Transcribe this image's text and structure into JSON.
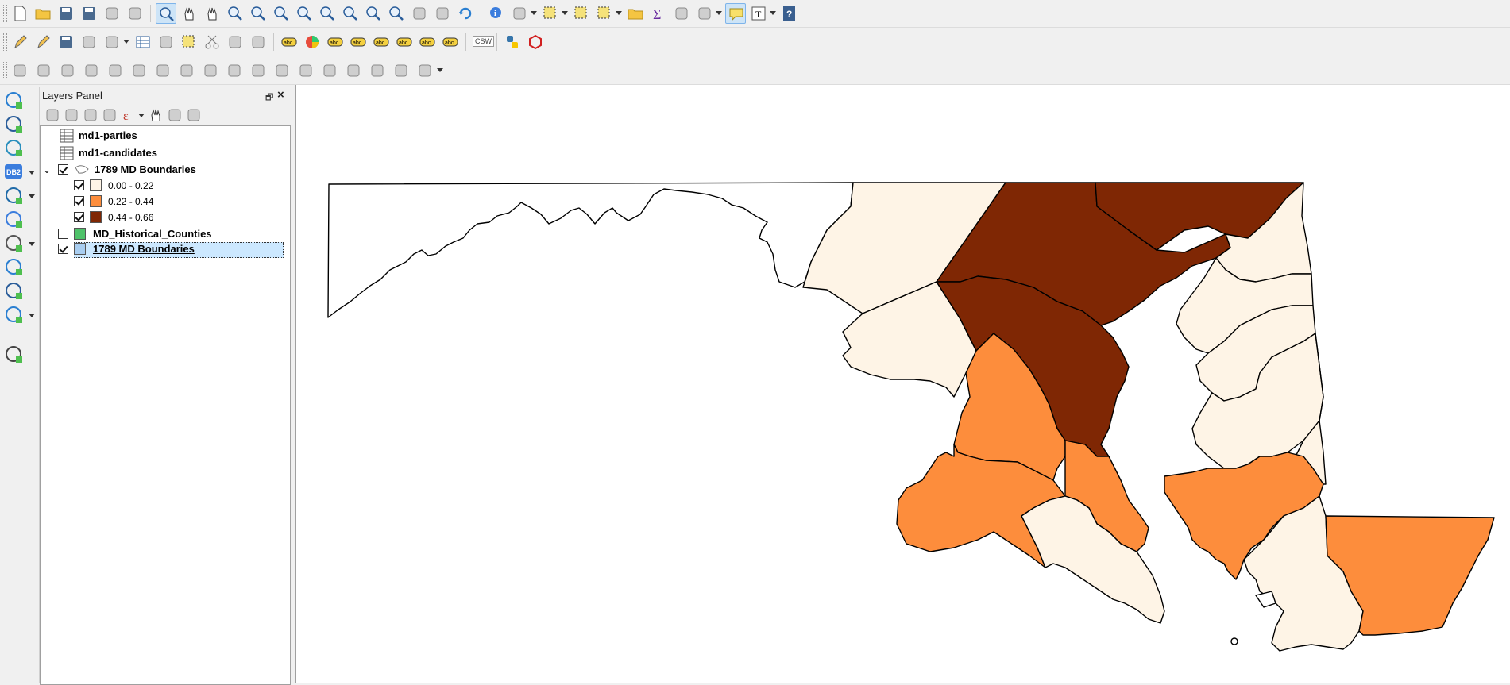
{
  "toolbar": {
    "row1": [
      {
        "name": "new-project-icon",
        "active": false
      },
      {
        "name": "open-project-icon",
        "active": false
      },
      {
        "name": "save-project-icon",
        "active": false
      },
      {
        "name": "save-as-icon",
        "active": false
      },
      {
        "name": "new-print-layout-icon",
        "active": false
      },
      {
        "name": "layout-manager-icon",
        "active": false
      },
      {
        "name": "touch-zoom-pan-icon",
        "active": true
      },
      {
        "name": "pan-map-icon",
        "active": false
      },
      {
        "name": "pan-to-selection-icon",
        "active": false
      },
      {
        "name": "zoom-in-icon",
        "active": false
      },
      {
        "name": "zoom-out-icon",
        "active": false
      },
      {
        "name": "zoom-native-icon",
        "active": false
      },
      {
        "name": "zoom-full-icon",
        "active": false
      },
      {
        "name": "zoom-to-selection-icon",
        "active": false
      },
      {
        "name": "zoom-to-layer-icon",
        "active": false
      },
      {
        "name": "zoom-last-icon",
        "active": false
      },
      {
        "name": "zoom-next-icon",
        "active": false
      },
      {
        "name": "new-bookmark-icon",
        "active": false
      },
      {
        "name": "show-bookmarks-icon",
        "active": false
      },
      {
        "name": "refresh-icon",
        "active": false
      },
      {
        "name": "identify-features-icon",
        "active": false
      },
      {
        "name": "run-feature-action-icon",
        "active": false
      },
      {
        "name": "select-features-icon",
        "active": false
      },
      {
        "name": "select-by-expression-icon",
        "active": false
      },
      {
        "name": "deselect-features-icon",
        "active": false
      },
      {
        "name": "open-attribute-table-icon",
        "active": false
      },
      {
        "name": "statistical-summary-icon",
        "active": false
      },
      {
        "name": "field-calculator-icon",
        "active": false
      },
      {
        "name": "measure-line-icon",
        "active": false
      },
      {
        "name": "map-tips-icon",
        "active": true
      },
      {
        "name": "text-annotation-icon",
        "active": false
      },
      {
        "name": "help-contents-icon",
        "active": false
      }
    ],
    "row2": [
      {
        "name": "current-edits-icon"
      },
      {
        "name": "toggle-editing-icon"
      },
      {
        "name": "save-layer-edits-icon"
      },
      {
        "name": "add-polygon-feature-icon"
      },
      {
        "name": "vertex-tool-icon"
      },
      {
        "name": "modify-attributes-icon"
      },
      {
        "name": "node-tool-icon"
      },
      {
        "name": "delete-selected-icon"
      },
      {
        "name": "cut-features-icon"
      },
      {
        "name": "copy-features-icon"
      },
      {
        "name": "paste-features-icon"
      },
      {
        "name": "label-toolbar-icon"
      },
      {
        "name": "diagram-properties-icon"
      },
      {
        "name": "highlight-pinned-labels-icon"
      },
      {
        "name": "pin-labels-icon"
      },
      {
        "name": "show-hide-labels-icon"
      },
      {
        "name": "move-label-icon"
      },
      {
        "name": "rotate-label-icon"
      },
      {
        "name": "change-label-icon"
      },
      {
        "name": "csw-icon",
        "label": "CSW"
      },
      {
        "name": "python-console-icon"
      },
      {
        "name": "geometry-checker-icon"
      }
    ],
    "row3_count": 18
  },
  "left_tools": [
    {
      "name": "data-source-manager-icon",
      "dropdown": false
    },
    {
      "name": "add-raster-layer-icon",
      "dropdown": false
    },
    {
      "name": "add-delimited-text-icon",
      "dropdown": false
    },
    {
      "name": "add-db2-layer-icon",
      "dropdown": true,
      "label": "DB2"
    },
    {
      "name": "add-wms-layer-icon",
      "dropdown": true
    },
    {
      "name": "add-wcs-layer-icon",
      "dropdown": false
    },
    {
      "name": "add-wfs-layer-icon",
      "dropdown": true
    },
    {
      "name": "new-temporary-layer-icon",
      "dropdown": false
    },
    {
      "name": "new-virtual-layer-icon",
      "dropdown": false
    },
    {
      "name": "add-mesh-layer-icon",
      "dropdown": true
    },
    {
      "name": "digitize-tool-icon",
      "dropdown": false
    }
  ],
  "layers_panel": {
    "title": "Layers Panel",
    "toolbar": [
      "style-icon",
      "add-group-icon",
      "manage-visibility-icon",
      "filter-legend-icon",
      "filter-expression-icon",
      "expand-all-icon",
      "collapse-all-icon",
      "remove-layer-icon"
    ],
    "layers": [
      {
        "label": "md1-parties",
        "type": "table",
        "checkbox": null
      },
      {
        "label": "md1-candidates",
        "type": "table",
        "checkbox": null
      },
      {
        "label": "1789 MD Boundaries",
        "type": "polygon",
        "checkbox": true,
        "expanded": true,
        "legend": [
          {
            "label": "0.00 - 0.22",
            "color": "#fef4e6",
            "checked": true
          },
          {
            "label": "0.22 - 0.44",
            "color": "#fd8d3c",
            "checked": true
          },
          {
            "label": "0.44 - 0.66",
            "color": "#7f2704",
            "checked": true
          }
        ]
      },
      {
        "label": "MD_Historical_Counties",
        "type": "polygon",
        "checkbox": false,
        "color": "#4fc26a"
      },
      {
        "label": "1789 MD Boundaries",
        "type": "polygon",
        "checkbox": true,
        "color": "#a8cdf0",
        "selected": true
      }
    ]
  },
  "map": {
    "class_colors": {
      "low": "#fef4e6",
      "mid": "#fd8d3c",
      "high": "#7f2704"
    },
    "background": "#ffffff"
  }
}
